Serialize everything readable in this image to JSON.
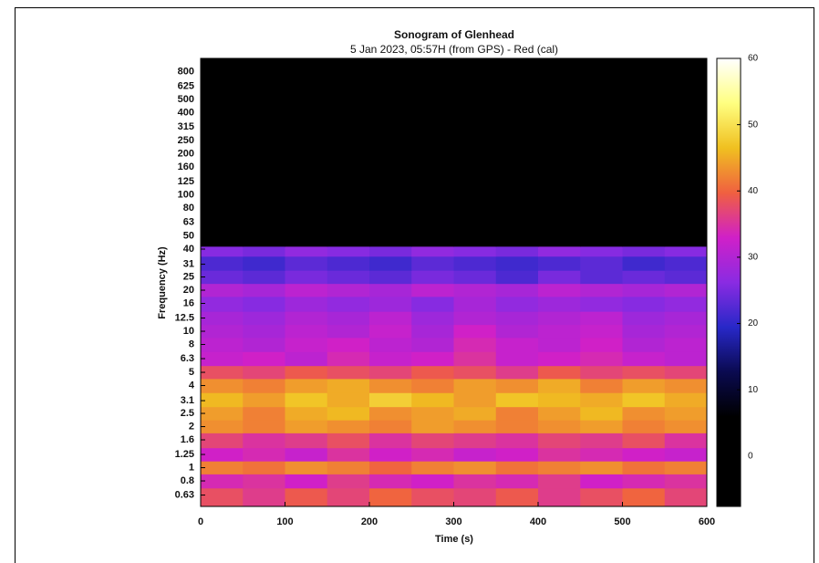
{
  "chart_data": {
    "type": "heatmap",
    "title": "Sonogram of Glenhead",
    "subtitle": "5 Jan 2023, 05:57H (from GPS) - Red (cal)",
    "x_label": "Time (s)",
    "y_label": "Frequency (Hz)",
    "xlim": [
      0,
      600
    ],
    "xticks": [
      0,
      100,
      200,
      300,
      400,
      500,
      600
    ],
    "ylim": [
      0.52,
      1000
    ],
    "y_log": true,
    "yticks": [
      0.63,
      0.8,
      1,
      1.25,
      1.6,
      2,
      2.5,
      3.1,
      4,
      5,
      6.3,
      8,
      10,
      12.5,
      16,
      20,
      25,
      31,
      40,
      50,
      63,
      80,
      100,
      125,
      160,
      200,
      250,
      315,
      400,
      500,
      625,
      800
    ],
    "zlim": [
      -7.6,
      60
    ],
    "zticks": [
      0,
      10,
      20,
      30,
      40,
      50,
      60
    ],
    "colors": [
      "#000000",
      "#000000",
      "#000000",
      "#0a0a50",
      "#2828c8",
      "#8a2be2",
      "#d020c8",
      "#f06040",
      "#f0c020",
      "#ffff80",
      "#ffffff"
    ],
    "xbins": [
      0,
      50,
      100,
      150,
      200,
      250,
      300,
      350,
      400,
      450,
      500,
      550,
      600
    ],
    "ybins": [
      0.52,
      0.71,
      0.9,
      1.12,
      1.4,
      1.8,
      2.24,
      2.8,
      3.55,
      4.5,
      5.6,
      7.1,
      9,
      11.2,
      14,
      18,
      22.4,
      28,
      35.5,
      42,
      1000
    ],
    "values": [
      [
        38,
        36,
        39,
        37,
        40,
        38,
        37,
        39,
        36,
        38,
        40,
        37
      ],
      [
        34,
        35,
        33,
        36,
        34,
        33,
        35,
        34,
        36,
        33,
        34,
        35
      ],
      [
        42,
        41,
        43,
        42,
        40,
        42,
        43,
        41,
        42,
        43,
        41,
        42
      ],
      [
        33,
        34,
        32,
        35,
        33,
        34,
        32,
        33,
        35,
        34,
        33,
        32
      ],
      [
        37,
        35,
        36,
        38,
        35,
        37,
        36,
        35,
        37,
        36,
        38,
        35
      ],
      [
        43,
        42,
        44,
        43,
        42,
        44,
        43,
        42,
        43,
        44,
        42,
        43
      ],
      [
        44,
        42,
        45,
        46,
        43,
        44,
        45,
        42,
        44,
        46,
        43,
        44
      ],
      [
        46,
        44,
        47,
        45,
        48,
        46,
        44,
        47,
        46,
        45,
        47,
        45
      ],
      [
        43,
        42,
        44,
        45,
        43,
        42,
        44,
        43,
        45,
        42,
        44,
        43
      ],
      [
        38,
        37,
        39,
        38,
        37,
        39,
        38,
        36,
        39,
        37,
        38,
        37
      ],
      [
        32,
        33,
        31,
        34,
        32,
        33,
        35,
        32,
        33,
        34,
        32,
        31
      ],
      [
        31,
        30,
        32,
        33,
        31,
        30,
        34,
        32,
        31,
        33,
        30,
        31
      ],
      [
        30,
        29,
        31,
        30,
        32,
        29,
        33,
        30,
        31,
        32,
        29,
        30
      ],
      [
        29,
        28,
        30,
        29,
        31,
        28,
        30,
        29,
        30,
        31,
        28,
        29
      ],
      [
        27,
        26,
        28,
        27,
        28,
        26,
        29,
        27,
        28,
        27,
        26,
        27
      ],
      [
        30,
        29,
        31,
        30,
        29,
        31,
        30,
        29,
        31,
        30,
        29,
        30
      ],
      [
        24,
        23,
        25,
        24,
        23,
        25,
        24,
        22,
        25,
        23,
        24,
        23
      ],
      [
        22,
        21,
        23,
        22,
        21,
        23,
        22,
        21,
        22,
        23,
        21,
        22
      ],
      [
        26,
        25,
        27,
        26,
        25,
        27,
        26,
        25,
        27,
        26,
        25,
        26
      ],
      [
        -7,
        -7,
        -7,
        -7,
        -7,
        -7,
        -7,
        -7,
        -7,
        -7,
        -7,
        -7
      ]
    ]
  }
}
